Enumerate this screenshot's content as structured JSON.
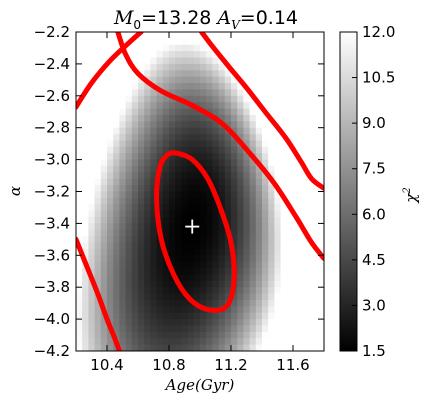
{
  "chart_data": {
    "type": "heatmap",
    "title": {
      "m0_symbol": "M",
      "m0_subscript": "0",
      "m0_value": "=13.28",
      "av_symbol": "A",
      "av_subscript": "V",
      "av_value": "=0.14"
    },
    "xlabel": "Age(Gyr)",
    "ylabel": "α",
    "xlim": [
      10.2,
      11.8
    ],
    "ylim": [
      -4.2,
      -2.2
    ],
    "x_ticks": [
      10.4,
      10.8,
      11.2,
      11.6
    ],
    "x_tick_labels": [
      "10.4",
      "10.8",
      "11.2",
      "11.6"
    ],
    "y_ticks": [
      -2.2,
      -2.4,
      -2.6,
      -2.8,
      -3.0,
      -3.2,
      -3.4,
      -3.6,
      -3.8,
      -4.0,
      -4.2
    ],
    "y_tick_labels": [
      "−2.2",
      "−2.4",
      "−2.6",
      "−2.8",
      "−3.0",
      "−3.2",
      "−3.4",
      "−3.6",
      "−3.8",
      "−4.0",
      "−4.2"
    ],
    "colorbar": {
      "label": "χ",
      "label_superscript": "2",
      "range": [
        1.5,
        12.0
      ],
      "colormap": "gray",
      "ticks": [
        1.5,
        3.0,
        4.5,
        6.0,
        7.5,
        9.0,
        10.5,
        12.0
      ],
      "tick_labels": [
        "1.5",
        "3.0",
        "4.5",
        "6.0",
        "7.5",
        "9.0",
        "10.5",
        "12.0"
      ]
    },
    "best_fit_marker": {
      "x": 10.95,
      "y": -3.42,
      "marker": "+",
      "color": "#ffffff"
    },
    "contours": [
      {
        "name": "inner",
        "color": "#ff0000",
        "closed": true,
        "points": [
          [
            10.85,
            -2.96
          ],
          [
            10.95,
            -3.0
          ],
          [
            11.05,
            -3.12
          ],
          [
            11.13,
            -3.3
          ],
          [
            11.2,
            -3.52
          ],
          [
            11.22,
            -3.76
          ],
          [
            11.17,
            -3.92
          ],
          [
            11.05,
            -3.94
          ],
          [
            10.93,
            -3.87
          ],
          [
            10.83,
            -3.72
          ],
          [
            10.75,
            -3.5
          ],
          [
            10.72,
            -3.25
          ],
          [
            10.74,
            -3.05
          ],
          [
            10.79,
            -2.97
          ]
        ]
      },
      {
        "name": "outer-top-left",
        "color": "#ff0000",
        "closed": false,
        "points": [
          [
            10.2,
            -2.67
          ],
          [
            10.3,
            -2.52
          ],
          [
            10.42,
            -2.38
          ],
          [
            10.55,
            -2.26
          ],
          [
            10.62,
            -2.2
          ]
        ]
      },
      {
        "name": "outer-upper-right",
        "color": "#ff0000",
        "closed": false,
        "points": [
          [
            11.01,
            -2.2
          ],
          [
            11.08,
            -2.29
          ],
          [
            11.18,
            -2.41
          ],
          [
            11.3,
            -2.55
          ],
          [
            11.42,
            -2.7
          ],
          [
            11.55,
            -2.86
          ],
          [
            11.65,
            -3.01
          ],
          [
            11.72,
            -3.12
          ],
          [
            11.8,
            -3.18
          ]
        ]
      },
      {
        "name": "outer-right",
        "color": "#ff0000",
        "closed": false,
        "points": [
          [
            10.47,
            -2.2
          ],
          [
            10.52,
            -2.34
          ],
          [
            10.6,
            -2.46
          ],
          [
            10.75,
            -2.57
          ],
          [
            10.95,
            -2.66
          ],
          [
            11.15,
            -2.78
          ],
          [
            11.33,
            -2.97
          ],
          [
            11.48,
            -3.15
          ],
          [
            11.62,
            -3.36
          ],
          [
            11.72,
            -3.52
          ],
          [
            11.8,
            -3.62
          ]
        ]
      },
      {
        "name": "outer-lower-left",
        "color": "#ff0000",
        "closed": false,
        "points": [
          [
            10.2,
            -3.5
          ],
          [
            10.27,
            -3.67
          ],
          [
            10.34,
            -3.84
          ],
          [
            10.4,
            -4.0
          ],
          [
            10.45,
            -4.12
          ],
          [
            10.48,
            -4.2
          ]
        ]
      }
    ]
  }
}
